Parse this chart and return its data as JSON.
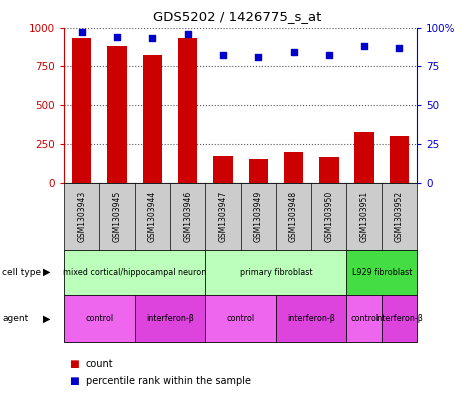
{
  "title": "GDS5202 / 1426775_s_at",
  "samples": [
    "GSM1303943",
    "GSM1303945",
    "GSM1303944",
    "GSM1303946",
    "GSM1303947",
    "GSM1303949",
    "GSM1303948",
    "GSM1303950",
    "GSM1303951",
    "GSM1303952"
  ],
  "counts": [
    930,
    880,
    820,
    930,
    170,
    155,
    200,
    165,
    330,
    300
  ],
  "percentiles": [
    97,
    94,
    93,
    96,
    82,
    81,
    84,
    82,
    88,
    87
  ],
  "ylim_left": [
    0,
    1000
  ],
  "ylim_right": [
    0,
    100
  ],
  "yticks_left": [
    0,
    250,
    500,
    750,
    1000
  ],
  "yticks_right": [
    0,
    25,
    50,
    75,
    100
  ],
  "cell_types": [
    {
      "label": "mixed cortical/hippocampal neuron",
      "start": 0,
      "end": 4,
      "color": "#bbffbb"
    },
    {
      "label": "primary fibroblast",
      "start": 4,
      "end": 8,
      "color": "#bbffbb"
    },
    {
      "label": "L929 fibroblast",
      "start": 8,
      "end": 10,
      "color": "#44dd44"
    }
  ],
  "agents": [
    {
      "label": "control",
      "start": 0,
      "end": 2,
      "color": "#ee66ee"
    },
    {
      "label": "interferon-β",
      "start": 2,
      "end": 4,
      "color": "#dd44dd"
    },
    {
      "label": "control",
      "start": 4,
      "end": 6,
      "color": "#ee66ee"
    },
    {
      "label": "interferon-β",
      "start": 6,
      "end": 8,
      "color": "#dd44dd"
    },
    {
      "label": "control",
      "start": 8,
      "end": 9,
      "color": "#ee66ee"
    },
    {
      "label": "interferon-β",
      "start": 9,
      "end": 10,
      "color": "#dd44dd"
    }
  ],
  "bar_color": "#cc0000",
  "dot_color": "#0000cc",
  "grid_color": "#555555",
  "left_axis_color": "#cc0000",
  "right_axis_color": "#0000cc",
  "bg_color": "#ffffff",
  "gray_color": "#cccccc"
}
